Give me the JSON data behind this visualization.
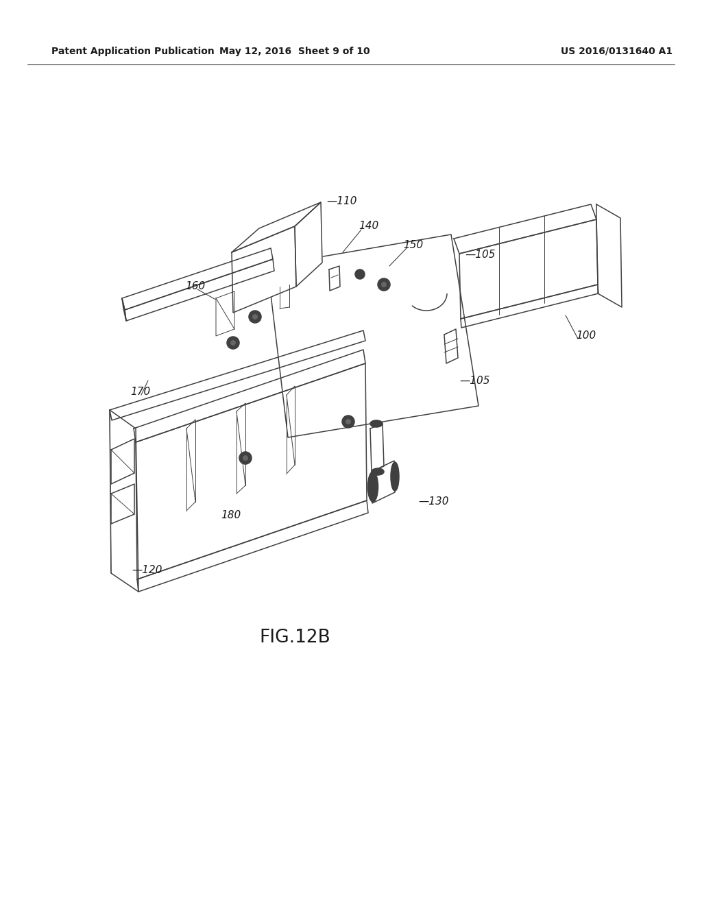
{
  "background_color": "#ffffff",
  "line_color": "#404040",
  "lw": 1.1,
  "tlw": 0.7,
  "fig_label": "FIG.12B",
  "header_left": "Patent Application Publication",
  "header_center": "May 12, 2016  Sheet 9 of 10",
  "header_right": "US 2016/0131640 A1",
  "label_fontsize": 11,
  "fig_label_fontsize": 19,
  "header_fontsize": 10
}
